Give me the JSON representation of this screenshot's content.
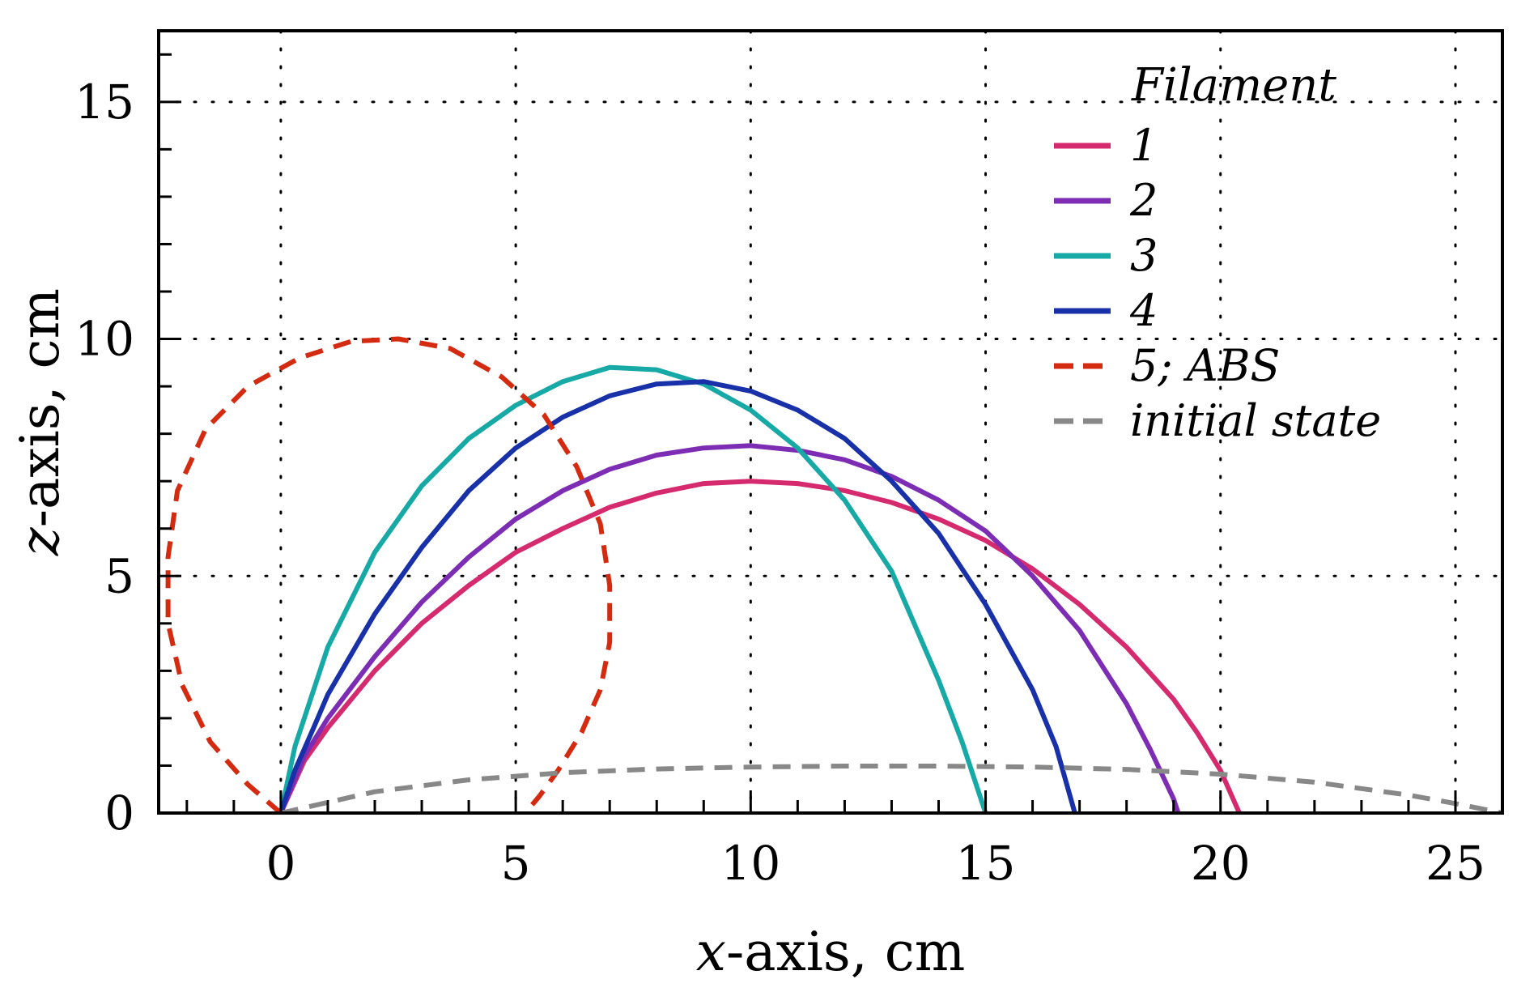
{
  "chart_data": {
    "type": "line",
    "title": "",
    "xlabel_var": "x",
    "xlabel_rest": "-axis, cm",
    "ylabel_var": "z",
    "ylabel_rest": "-axis, cm",
    "xlim": [
      -2.6,
      26
    ],
    "ylim": [
      0,
      16.5
    ],
    "xticks": [
      0,
      5,
      10,
      15,
      20,
      25
    ],
    "yticks": [
      0,
      5,
      10,
      15
    ],
    "x_minor_step": 1,
    "y_minor_step": 1,
    "grid": "dotted",
    "legend": {
      "title": "Filament",
      "placement": "top-right",
      "entries": [
        {
          "label": "1",
          "color": "#d62a6f",
          "dash": "solid"
        },
        {
          "label": "2",
          "color": "#7d2db3",
          "dash": "solid"
        },
        {
          "label": "3",
          "color": "#17a9a6",
          "dash": "solid"
        },
        {
          "label": "4",
          "color": "#1830a8",
          "dash": "solid"
        },
        {
          "label": "5; ABS",
          "color": "#d42a10",
          "dash": "dashed"
        },
        {
          "label": "initial state",
          "color": "#888888",
          "dash": "dashed"
        }
      ]
    },
    "series": [
      {
        "name": "1",
        "color": "#d62a6f",
        "dash": "solid",
        "x": [
          0,
          0.5,
          1,
          2,
          3,
          4,
          5,
          6,
          7,
          8,
          9,
          10,
          11,
          12,
          13,
          14,
          15,
          16,
          17,
          18,
          19,
          19.5,
          20,
          20.4
        ],
        "y": [
          0,
          1.1,
          1.8,
          3.0,
          4.0,
          4.8,
          5.5,
          6.0,
          6.45,
          6.75,
          6.95,
          7.0,
          6.95,
          6.8,
          6.55,
          6.2,
          5.75,
          5.15,
          4.4,
          3.5,
          2.4,
          1.7,
          0.9,
          0
        ]
      },
      {
        "name": "2",
        "color": "#7d2db3",
        "dash": "solid",
        "x": [
          0,
          0.5,
          1,
          2,
          3,
          4,
          5,
          6,
          7,
          8,
          9,
          10,
          11,
          12,
          13,
          14,
          15,
          16,
          17,
          18,
          18.5,
          19,
          19.1
        ],
        "y": [
          0,
          1.2,
          2.0,
          3.3,
          4.45,
          5.4,
          6.2,
          6.8,
          7.25,
          7.55,
          7.7,
          7.75,
          7.65,
          7.45,
          7.1,
          6.6,
          5.95,
          5.0,
          3.85,
          2.3,
          1.35,
          0.3,
          0
        ]
      },
      {
        "name": "3",
        "color": "#17a9a6",
        "dash": "solid",
        "x": [
          0,
          0.3,
          0.7,
          1,
          2,
          3,
          4,
          5,
          6,
          7,
          8,
          9,
          10,
          11,
          12,
          13,
          14,
          14.5,
          15
        ],
        "y": [
          0,
          1.4,
          2.6,
          3.5,
          5.5,
          6.9,
          7.9,
          8.6,
          9.1,
          9.4,
          9.35,
          9.05,
          8.5,
          7.7,
          6.6,
          5.1,
          2.8,
          1.5,
          0
        ]
      },
      {
        "name": "4",
        "color": "#1830a8",
        "dash": "solid",
        "x": [
          0,
          0.3,
          0.7,
          1,
          2,
          3,
          4,
          5,
          6,
          7,
          8,
          9,
          10,
          11,
          12,
          13,
          14,
          15,
          16,
          16.5,
          16.9
        ],
        "y": [
          0,
          0.9,
          1.8,
          2.5,
          4.2,
          5.6,
          6.8,
          7.7,
          8.35,
          8.8,
          9.05,
          9.1,
          8.9,
          8.5,
          7.9,
          7.0,
          5.9,
          4.4,
          2.6,
          1.4,
          0
        ]
      },
      {
        "name": "5; ABS",
        "color": "#d42a10",
        "dash": "dashed",
        "x": [
          0,
          -0.7,
          -1.5,
          -2.1,
          -2.4,
          -2.4,
          -2.2,
          -1.6,
          -0.7,
          0.4,
          1.5,
          2.5,
          3.6,
          4.7,
          5.6,
          6.3,
          6.8,
          7.0,
          7.0,
          6.8,
          6.4,
          5.9,
          5.5,
          5.2
        ],
        "y": [
          0,
          0.6,
          1.5,
          2.7,
          4.0,
          5.4,
          6.8,
          8.1,
          9.0,
          9.6,
          9.95,
          10.0,
          9.8,
          9.2,
          8.4,
          7.3,
          6.1,
          4.8,
          3.6,
          2.6,
          1.7,
          0.9,
          0.35,
          0
        ]
      },
      {
        "name": "initial state",
        "color": "#888888",
        "dash": "dashed",
        "x": [
          0,
          2,
          4,
          6,
          8,
          10,
          12,
          14,
          16,
          18,
          20,
          22,
          24,
          25,
          26
        ],
        "y": [
          0,
          0.45,
          0.7,
          0.85,
          0.93,
          0.97,
          0.99,
          0.99,
          0.97,
          0.92,
          0.82,
          0.65,
          0.38,
          0.2,
          0
        ]
      }
    ]
  }
}
